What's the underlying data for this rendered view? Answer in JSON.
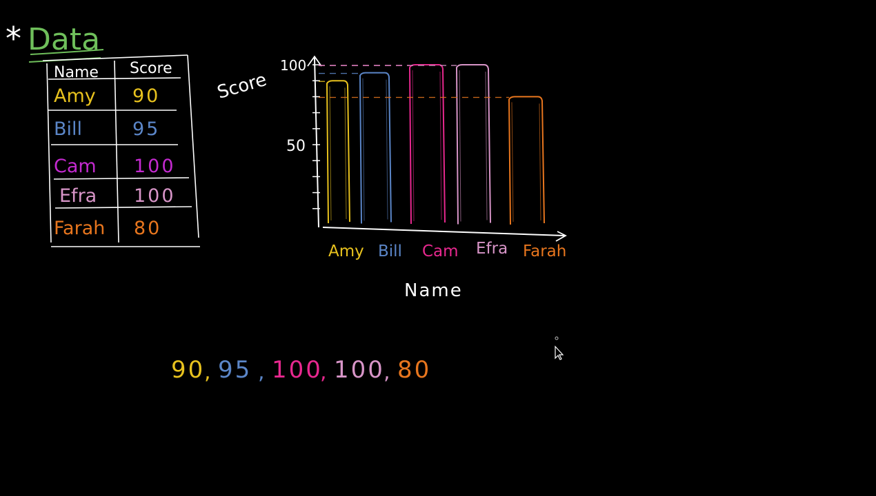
{
  "heading": {
    "text": "Data",
    "star": "*",
    "color": "#6fbf5b"
  },
  "table": {
    "headers": [
      "Name",
      "Score"
    ],
    "rows": [
      {
        "name": "Amy",
        "score": "90",
        "color": "#e8c21e"
      },
      {
        "name": "Bill",
        "score": "95",
        "color": "#5b86c8"
      },
      {
        "name": "Cam",
        "score": "100",
        "color": "#c42ad0"
      },
      {
        "name": "Efra",
        "score": "100",
        "color": "#d895c8"
      },
      {
        "name": "Farah",
        "score": "80",
        "color": "#e8761e"
      }
    ]
  },
  "chart_data": {
    "type": "bar",
    "categories": [
      "Amy",
      "Bill",
      "Cam",
      "Efra",
      "Farah"
    ],
    "values": [
      90,
      95,
      100,
      100,
      80
    ],
    "colors": [
      "#e8c21e",
      "#5b86c8",
      "#e8288f",
      "#d895c8",
      "#e8761e"
    ],
    "title": "",
    "xlabel": "Name",
    "ylabel": "Score",
    "ylim": [
      0,
      100
    ],
    "yticks": [
      "50",
      "100"
    ],
    "grid": false
  },
  "data_list": {
    "items": [
      "90",
      "95",
      "100",
      "100",
      "80"
    ],
    "colors": [
      "#e8c21e",
      "#5b86c8",
      "#e8288f",
      "#d895c8",
      "#e8761e"
    ],
    "separator": ","
  },
  "cursor": {
    "icon": "mouse-pointer-icon"
  }
}
